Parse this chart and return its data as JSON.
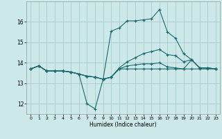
{
  "title": "",
  "xlabel": "Humidex (Indice chaleur)",
  "bg_color": "#cce8e8",
  "grid_color": "#aacccc",
  "line_color": "#1a6b6b",
  "xlim": [
    -0.5,
    23.5
  ],
  "ylim": [
    11.5,
    17.0
  ],
  "yticks": [
    12,
    13,
    14,
    15,
    16
  ],
  "xticks": [
    0,
    1,
    2,
    3,
    4,
    5,
    6,
    7,
    8,
    9,
    10,
    11,
    12,
    13,
    14,
    15,
    16,
    17,
    18,
    19,
    20,
    21,
    22,
    23
  ],
  "lines": [
    {
      "x": [
        0,
        1,
        2,
        3,
        4,
        5,
        6,
        7,
        8,
        9,
        10,
        11,
        12,
        13,
        14,
        15,
        16,
        17,
        18,
        19,
        20,
        21,
        22,
        23
      ],
      "y": [
        13.7,
        13.85,
        13.6,
        13.6,
        13.6,
        13.55,
        13.45,
        13.35,
        13.3,
        13.2,
        15.55,
        15.7,
        16.05,
        16.05,
        16.1,
        16.15,
        16.6,
        15.5,
        15.2,
        14.45,
        14.15,
        13.75,
        13.75,
        13.7
      ]
    },
    {
      "x": [
        0,
        1,
        2,
        3,
        4,
        5,
        6,
        7,
        8,
        9,
        10,
        11,
        12,
        13,
        14,
        15,
        16,
        17,
        18,
        19,
        20,
        21,
        22,
        23
      ],
      "y": [
        13.7,
        13.85,
        13.6,
        13.6,
        13.6,
        13.55,
        13.45,
        13.35,
        13.3,
        13.2,
        13.3,
        13.75,
        14.05,
        14.25,
        14.45,
        14.55,
        14.65,
        14.4,
        14.35,
        14.05,
        14.15,
        13.75,
        13.75,
        13.7
      ]
    },
    {
      "x": [
        0,
        1,
        2,
        3,
        4,
        5,
        6,
        7,
        8,
        9,
        10,
        11,
        12,
        13,
        14,
        15,
        16,
        17,
        18,
        19,
        20,
        21,
        22,
        23
      ],
      "y": [
        13.7,
        13.85,
        13.6,
        13.6,
        13.6,
        13.55,
        13.45,
        13.35,
        13.3,
        13.2,
        13.3,
        13.7,
        13.85,
        13.9,
        13.95,
        13.95,
        14.0,
        13.8,
        13.75,
        13.7,
        14.15,
        13.75,
        13.75,
        13.7
      ]
    },
    {
      "x": [
        0,
        1,
        2,
        3,
        4,
        5,
        6,
        7,
        8,
        9,
        10,
        11,
        12,
        13,
        14,
        15,
        16,
        17,
        18,
        19,
        20,
        21,
        22,
        23
      ],
      "y": [
        13.7,
        13.85,
        13.6,
        13.6,
        13.6,
        13.55,
        13.45,
        12.0,
        11.75,
        13.2,
        13.3,
        13.7,
        13.7,
        13.7,
        13.7,
        13.7,
        13.7,
        13.7,
        13.7,
        13.7,
        13.7,
        13.7,
        13.7,
        13.7
      ]
    }
  ]
}
